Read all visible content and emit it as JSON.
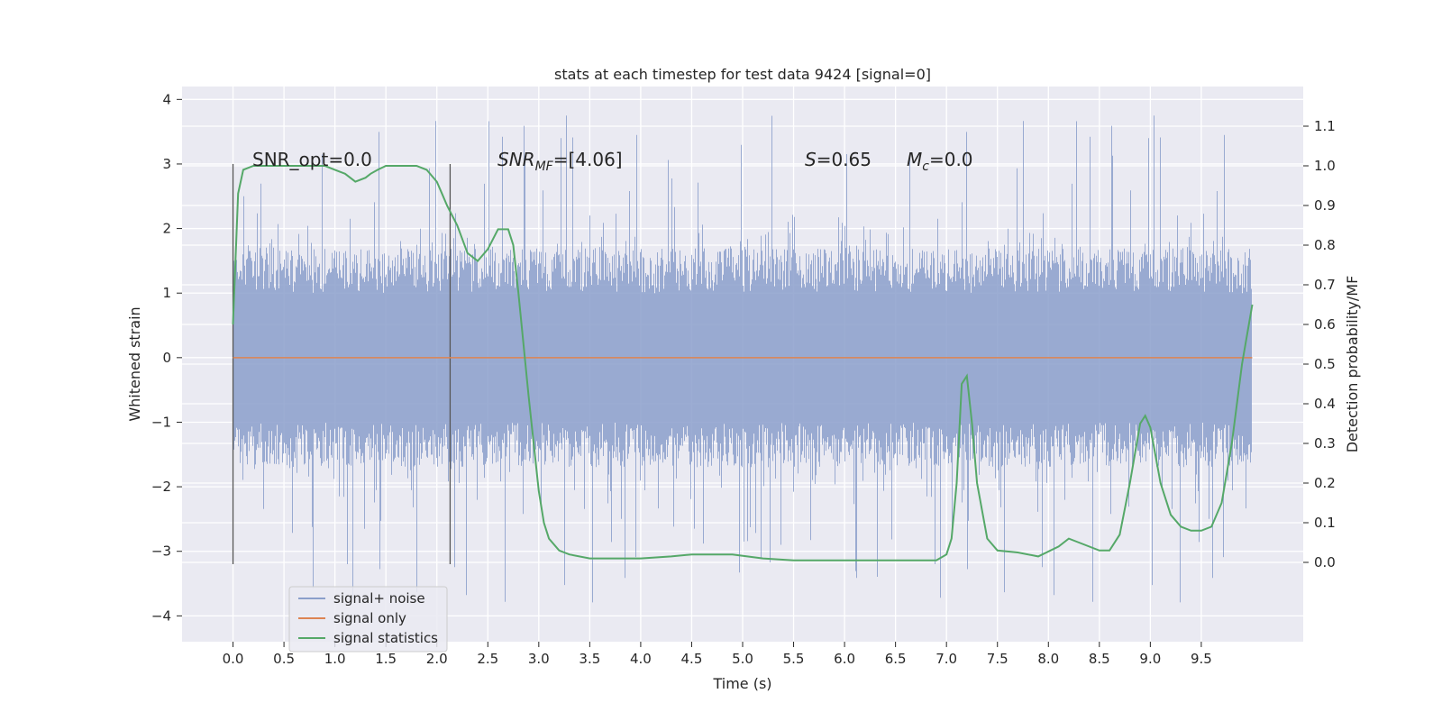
{
  "chart_data": {
    "type": "line",
    "title": "stats at each timestep for test data 9424 [signal=0]",
    "xlabel": "Time (s)",
    "ylabel": "Whitened strain",
    "y2label": "Detection probability/MF",
    "xlim": [
      -0.5,
      10.5
    ],
    "ylim": [
      -4.4,
      4.2
    ],
    "y2lim": [
      -0.2,
      1.2
    ],
    "x_ticks": [
      "0.0",
      "0.5",
      "1.0",
      "1.5",
      "2.0",
      "2.5",
      "3.0",
      "3.5",
      "4.0",
      "4.5",
      "5.0",
      "5.5",
      "6.0",
      "6.5",
      "7.0",
      "7.5",
      "8.0",
      "8.5",
      "9.0",
      "9.5"
    ],
    "y_ticks": [
      "4",
      "3",
      "2",
      "1",
      "0",
      "−1",
      "−2",
      "−3",
      "−4"
    ],
    "y2_ticks": [
      "1.1",
      "1.0",
      "0.9",
      "0.8",
      "0.7",
      "0.6",
      "0.5",
      "0.4",
      "0.3",
      "0.2",
      "0.1",
      "0.0"
    ],
    "grid": true,
    "legend": "lower-left",
    "annotations": {
      "snr_opt": "SNR_opt=0.0",
      "snr_mf_prefix": "SNR",
      "snr_mf_sub": "MF",
      "snr_mf_suffix": "=[4.06]",
      "s_prefix": "S",
      "s_suffix": "=0.65",
      "mc_prefix": "M",
      "mc_sub": "c",
      "mc_suffix": "=0.0"
    },
    "vertical_markers_x": [
      0.0,
      2.13
    ],
    "series": [
      {
        "name": "signal+ noise",
        "color": "#8b9fcb",
        "x_range": [
          0.0,
          10.0
        ],
        "typical_band": [
          -1.7,
          1.7
        ],
        "peak_range": [
          -4.0,
          3.8
        ]
      },
      {
        "name": "signal only",
        "color": "#dd8452",
        "x": [
          0.0,
          10.0
        ],
        "y": [
          0.0,
          0.0
        ]
      },
      {
        "name": "signal statistics",
        "color": "#55a868",
        "axis": "right",
        "x": [
          0.0,
          0.05,
          0.1,
          0.2,
          0.3,
          0.5,
          0.7,
          0.9,
          1.0,
          1.1,
          1.2,
          1.3,
          1.35,
          1.42,
          1.5,
          1.6,
          1.8,
          1.9,
          2.0,
          2.05,
          2.1,
          2.2,
          2.3,
          2.4,
          2.5,
          2.6,
          2.7,
          2.75,
          2.8,
          2.9,
          3.0,
          3.05,
          3.1,
          3.2,
          3.3,
          3.5,
          4.0,
          4.3,
          4.5,
          4.7,
          4.9,
          5.2,
          5.5,
          5.8,
          6.0,
          6.3,
          6.6,
          6.9,
          7.0,
          7.05,
          7.1,
          7.15,
          7.2,
          7.25,
          7.3,
          7.4,
          7.5,
          7.7,
          7.9,
          8.1,
          8.2,
          8.3,
          8.5,
          8.6,
          8.7,
          8.8,
          8.9,
          8.95,
          9.0,
          9.1,
          9.2,
          9.3,
          9.4,
          9.5,
          9.6,
          9.7,
          9.8,
          9.9,
          10.0
        ],
        "y": [
          0.6,
          0.93,
          0.99,
          1.0,
          1.0,
          1.0,
          1.0,
          1.0,
          0.99,
          0.98,
          0.96,
          0.97,
          0.98,
          0.99,
          1.0,
          1.0,
          1.0,
          0.99,
          0.96,
          0.93,
          0.9,
          0.85,
          0.78,
          0.76,
          0.79,
          0.84,
          0.84,
          0.8,
          0.68,
          0.42,
          0.18,
          0.1,
          0.06,
          0.03,
          0.02,
          0.01,
          0.01,
          0.015,
          0.02,
          0.02,
          0.02,
          0.01,
          0.005,
          0.005,
          0.005,
          0.005,
          0.005,
          0.005,
          0.02,
          0.06,
          0.2,
          0.45,
          0.47,
          0.35,
          0.2,
          0.06,
          0.03,
          0.025,
          0.015,
          0.04,
          0.06,
          0.05,
          0.03,
          0.03,
          0.07,
          0.2,
          0.35,
          0.37,
          0.34,
          0.2,
          0.12,
          0.09,
          0.08,
          0.08,
          0.09,
          0.15,
          0.3,
          0.5,
          0.65
        ]
      }
    ]
  }
}
